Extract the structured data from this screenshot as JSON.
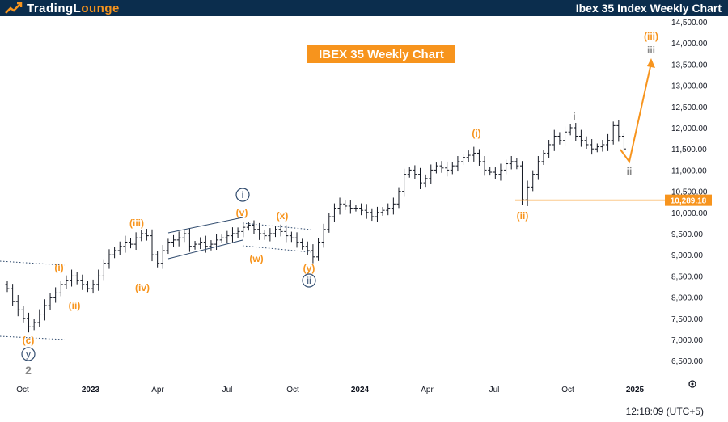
{
  "header": {
    "brand_part1": "TradingL",
    "brand_part2": "ounge",
    "title": "Ibex 35 Index Weekly Chart"
  },
  "footer": {
    "time": "12:18:09 (UTC+5)"
  },
  "colors": {
    "header_bg": "#0b2d4d",
    "orange": "#f7941d",
    "navy": "#2f4a6d",
    "gray": "#888888",
    "price_tag": "#f7941d"
  },
  "chart_data": {
    "type": "ohlc",
    "title": "IBEX 35 Weekly Chart",
    "x_ticks": [
      "Oct",
      "2023",
      "Apr",
      "Jul",
      "Oct",
      "2024",
      "Apr",
      "Jul",
      "Oct",
      "2025"
    ],
    "y_ticks": [
      "14,500.00",
      "14,000.00",
      "13,500.00",
      "13,000.00",
      "12,500.00",
      "12,000.00",
      "11,500.00",
      "11,000.00",
      "10,500.00",
      "10,000.00",
      "9,500.00",
      "9,000.00",
      "8,500.00",
      "8,000.00",
      "7,500.00",
      "7,000.00",
      "6,500.00"
    ],
    "ylim": [
      6200,
      14500
    ],
    "horizontal_level": {
      "value": 10289.18,
      "label": "10,289.18"
    },
    "close_series": [
      8200,
      7900,
      7700,
      7500,
      7300,
      7400,
      7600,
      7800,
      8000,
      8100,
      8300,
      8400,
      8500,
      8400,
      8300,
      8200,
      8300,
      8500,
      8800,
      9000,
      9100,
      9200,
      9300,
      9250,
      9400,
      9500,
      9450,
      9000,
      8800,
      9100,
      9300,
      9350,
      9400,
      9500,
      9200,
      9250,
      9300,
      9200,
      9250,
      9350,
      9400,
      9450,
      9500,
      9550,
      9650,
      9700,
      9600,
      9500,
      9450,
      9500,
      9600,
      9550,
      9450,
      9400,
      9300,
      9200,
      9100,
      8950,
      9300,
      9600,
      9900,
      10100,
      10200,
      10150,
      10100,
      10100,
      10050,
      10000,
      9900,
      10000,
      10050,
      10100,
      10200,
      10500,
      10900,
      11000,
      10900,
      10700,
      10800,
      11000,
      11100,
      11050,
      11000,
      11100,
      11200,
      11300,
      11350,
      11400,
      11200,
      11000,
      10950,
      10900,
      11000,
      11150,
      11200,
      11100,
      10300,
      10600,
      10900,
      11200,
      11400,
      11600,
      11800,
      11700,
      11900,
      12000,
      11800,
      11700,
      11600,
      11500,
      11550,
      11600,
      11700,
      12050,
      11800,
      11500
    ],
    "waves": [
      {
        "label": "(c)",
        "color": "orange"
      },
      {
        "label": "y",
        "color": "navy",
        "circled": true
      },
      {
        "label": "2",
        "color": "gray"
      },
      {
        "label": "(i)",
        "color": "orange"
      },
      {
        "label": "(ii)",
        "color": "orange"
      },
      {
        "label": "(iii)",
        "color": "orange"
      },
      {
        "label": "(iv)",
        "color": "orange"
      },
      {
        "label": "(v)",
        "color": "orange"
      },
      {
        "label": "i",
        "color": "navy",
        "circled": true
      },
      {
        "label": "(w)",
        "color": "orange"
      },
      {
        "label": "(x)",
        "color": "orange"
      },
      {
        "label": "(y)",
        "color": "orange"
      },
      {
        "label": "ii",
        "color": "navy",
        "circled": true
      },
      {
        "label": "(i)",
        "color": "orange"
      },
      {
        "label": "(ii)",
        "color": "orange"
      },
      {
        "label": "i",
        "color": "gray"
      },
      {
        "label": "ii",
        "color": "gray"
      },
      {
        "label": "(iii)",
        "color": "orange"
      },
      {
        "label": "iii",
        "color": "gray"
      }
    ]
  }
}
